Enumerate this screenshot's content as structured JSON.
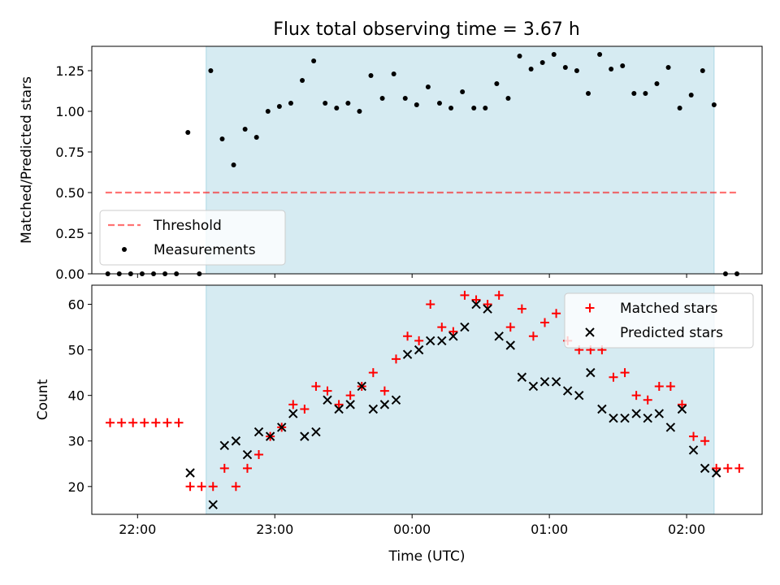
{
  "title": "Flux total observing time = 3.67 h",
  "colors": {
    "shade": "#add8e6",
    "threshold": "#ff0000",
    "measurement": "#000000",
    "matched": "#ff0000",
    "predicted": "#000000"
  },
  "chart_data": [
    {
      "type": "scatter",
      "ylabel": "Matched/Predicted stars",
      "xlim": [
        -2.3333,
        2.55
      ],
      "ylim": [
        0,
        1.4
      ],
      "yticks": [
        0.0,
        0.25,
        0.5,
        0.75,
        1.0,
        1.25
      ],
      "ytick_labels": [
        "0.00",
        "0.25",
        "0.50",
        "0.75",
        "1.00",
        "1.25"
      ],
      "shaded_x_range": [
        -1.5,
        2.2
      ],
      "legend_position": "lower left",
      "threshold": {
        "name": "Threshold",
        "x": [
          -2.2333,
          2.3667
        ],
        "y": 0.5
      },
      "series": [
        {
          "name": "Measurements",
          "x": [
            -2.2167,
            -2.1333,
            -2.05,
            -1.9667,
            -1.8833,
            -1.8,
            -1.7167,
            -1.6333,
            -1.55,
            -1.4667,
            -1.3833,
            -1.3,
            -1.2167,
            -1.1333,
            -1.05,
            -0.9667,
            -0.8833,
            -0.8,
            -0.7167,
            -0.6333,
            -0.55,
            -0.4667,
            -0.3833,
            -0.3,
            -0.2167,
            -0.1333,
            -0.05,
            0.0333,
            0.1167,
            0.2,
            0.2833,
            0.3667,
            0.45,
            0.5333,
            0.6167,
            0.7,
            0.7833,
            0.8667,
            0.95,
            1.0333,
            1.1167,
            1.2,
            1.2833,
            1.3667,
            1.45,
            1.5333,
            1.6167,
            1.7,
            1.7833,
            1.8667,
            1.95,
            2.0333,
            2.1167,
            2.2,
            2.2833,
            2.3667
          ],
          "y": [
            0,
            0,
            0,
            0,
            0,
            0,
            0,
            0.87,
            0,
            1.25,
            0.83,
            0.67,
            0.89,
            0.84,
            1.0,
            1.03,
            1.05,
            1.19,
            1.31,
            1.05,
            1.02,
            1.05,
            1.0,
            1.22,
            1.08,
            1.23,
            1.08,
            1.04,
            1.15,
            1.05,
            1.02,
            1.12,
            1.02,
            1.02,
            1.17,
            1.08,
            1.34,
            1.26,
            1.3,
            1.35,
            1.27,
            1.25,
            1.11,
            1.35,
            1.26,
            1.28,
            1.11,
            1.11,
            1.17,
            1.27,
            1.02,
            1.1,
            1.25,
            1.04,
            0,
            0
          ]
        }
      ]
    },
    {
      "type": "scatter",
      "xlabel": "Time (UTC)",
      "ylabel": "Count",
      "xlim": [
        -2.3333,
        2.55
      ],
      "ylim": [
        13.9,
        64.2
      ],
      "xticks": [
        -2,
        -1,
        0,
        1,
        2
      ],
      "xtick_labels": [
        "22:00",
        "23:00",
        "00:00",
        "01:00",
        "02:00"
      ],
      "yticks": [
        20,
        30,
        40,
        50,
        60
      ],
      "ytick_labels": [
        "20",
        "30",
        "40",
        "50",
        "60"
      ],
      "shaded_x_range": [
        -1.5,
        2.2
      ],
      "legend_position": "upper right",
      "series": [
        {
          "name": "Matched stars",
          "marker": "+",
          "x": [
            -2.2,
            -2.1167,
            -2.0333,
            -1.95,
            -1.8667,
            -1.7833,
            -1.7,
            -1.6167,
            -1.5333,
            -1.45,
            -1.3667,
            -1.2833,
            -1.2,
            -1.1167,
            -1.0333,
            -0.95,
            -0.8667,
            -0.7833,
            -0.7,
            -0.6167,
            -0.5333,
            -0.45,
            -0.3667,
            -0.2833,
            -0.2,
            -0.1167,
            -0.0333,
            0.05,
            0.1333,
            0.2167,
            0.3,
            0.3833,
            0.4667,
            0.55,
            0.6333,
            0.7167,
            0.8,
            0.8833,
            0.9667,
            1.05,
            1.1333,
            1.2167,
            1.3,
            1.3833,
            1.4667,
            1.55,
            1.6333,
            1.7167,
            1.8,
            1.8833,
            1.9667,
            2.05,
            2.1333,
            2.2167,
            2.3,
            2.3833
          ],
          "y": [
            34,
            34,
            34,
            34,
            34,
            34,
            34,
            20,
            20,
            20,
            24,
            20,
            24,
            27,
            31,
            33,
            38,
            37,
            42,
            41,
            38,
            40,
            42,
            45,
            41,
            48,
            53,
            52,
            60,
            55,
            54,
            62,
            61,
            60,
            62,
            55,
            59,
            53,
            56,
            58,
            52,
            50,
            50,
            50,
            44,
            45,
            40,
            39,
            42,
            42,
            38,
            31,
            30,
            24,
            24,
            24
          ]
        },
        {
          "name": "Predicted stars",
          "marker": "x",
          "x": [
            -1.6167,
            -1.45,
            -1.3667,
            -1.2833,
            -1.2,
            -1.1167,
            -1.0333,
            -0.95,
            -0.8667,
            -0.7833,
            -0.7,
            -0.6167,
            -0.5333,
            -0.45,
            -0.3667,
            -0.2833,
            -0.2,
            -0.1167,
            -0.0333,
            0.05,
            0.1333,
            0.2167,
            0.3,
            0.3833,
            0.4667,
            0.55,
            0.6333,
            0.7167,
            0.8,
            0.8833,
            0.9667,
            1.05,
            1.1333,
            1.2167,
            1.3,
            1.3833,
            1.4667,
            1.55,
            1.6333,
            1.7167,
            1.8,
            1.8833,
            1.9667,
            2.05,
            2.1333,
            2.2167
          ],
          "y": [
            23,
            16,
            29,
            30,
            27,
            32,
            31,
            33,
            36,
            31,
            32,
            39,
            37,
            38,
            42,
            37,
            38,
            39,
            49,
            50,
            52,
            52,
            53,
            55,
            60,
            59,
            53,
            51,
            44,
            42,
            43,
            43,
            41,
            40,
            45,
            37,
            35,
            35,
            36,
            35,
            36,
            33,
            37,
            28,
            24,
            23
          ]
        }
      ]
    }
  ]
}
